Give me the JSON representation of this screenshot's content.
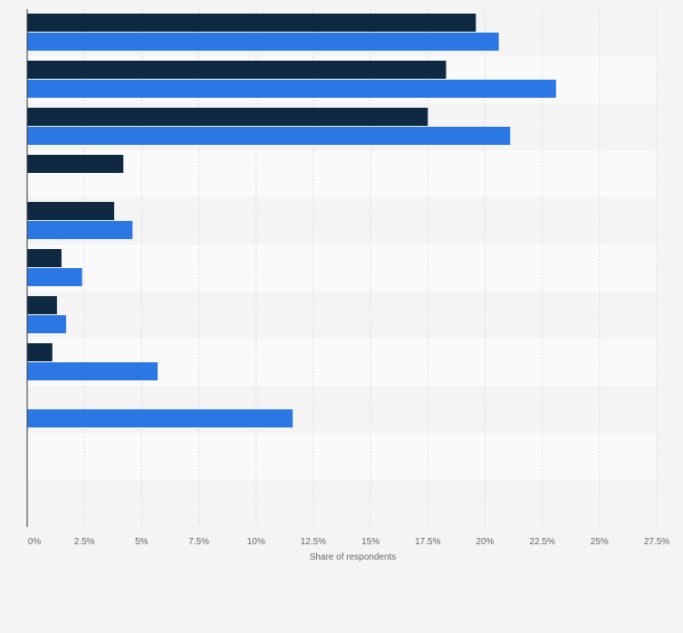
{
  "chart_data": {
    "type": "bar",
    "orientation": "horizontal",
    "title": "",
    "xlabel": "Share of respondents",
    "ylabel": "",
    "xlim": [
      0,
      27.5
    ],
    "x_ticks": [
      0,
      2.5,
      5,
      7.5,
      10,
      12.5,
      15,
      17.5,
      20,
      22.5,
      25,
      27.5
    ],
    "x_tick_labels": [
      "0%",
      "2.5%",
      "5%",
      "7.5%",
      "10%",
      "12.5%",
      "15%",
      "17.5%",
      "20%",
      "22.5%",
      "25%",
      "27.5%"
    ],
    "categories": [
      "",
      "",
      "",
      "",
      "",
      "",
      "",
      "",
      "",
      "",
      ""
    ],
    "series": [
      {
        "name": "",
        "color": "#0f2942",
        "values": [
          19.6,
          18.3,
          17.5,
          4.2,
          3.8,
          1.5,
          1.3,
          1.1,
          null,
          null,
          null
        ]
      },
      {
        "name": "",
        "color": "#2b78e4",
        "values": [
          20.6,
          23.1,
          21.1,
          null,
          4.6,
          2.4,
          1.7,
          5.7,
          11.6,
          null,
          null
        ]
      }
    ],
    "grid": true,
    "legend": "none"
  }
}
